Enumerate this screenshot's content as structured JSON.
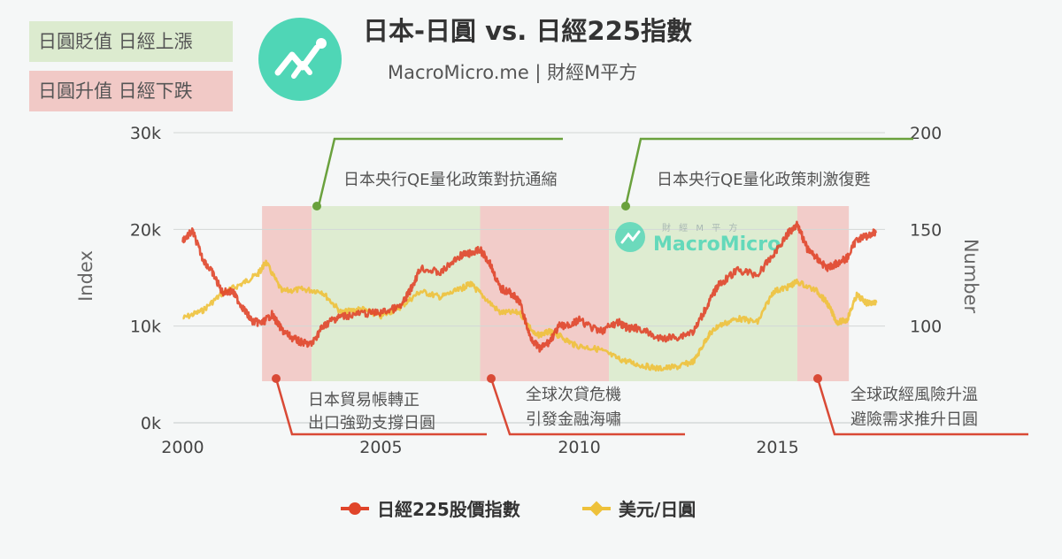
{
  "header": {
    "title": "日本-日圓 vs. 日經225指數",
    "subtitle": "MacroMicro.me | 財經M平方"
  },
  "legend_boxes": {
    "green": "日圓貶值 日經上漲",
    "red": "日圓升值 日經下跌"
  },
  "watermark": {
    "small": "財 經 M 平 方",
    "brand": "MacroMicro"
  },
  "colors": {
    "nikkei": "#e0452a",
    "usdjpy": "#eec13a",
    "green_band": "#dcebcf",
    "red_band": "#f1c9c6",
    "callout_green": "#6aa13d",
    "callout_red": "#d94a36",
    "brand": "#4fd6b6"
  },
  "chart_data": {
    "type": "line",
    "title": "日本-日圓 vs. 日經225指數",
    "xlabel": "",
    "x_ticks": [
      "2000",
      "2005",
      "2010",
      "2015"
    ],
    "xlim": [
      1999.9,
      2017.6
    ],
    "y_left": {
      "label": "Index",
      "ticks": [
        "0k",
        "10k",
        "20k",
        "30k"
      ],
      "lim": [
        0,
        30000
      ]
    },
    "y_right": {
      "label": "Number",
      "ticks": [
        "100",
        "150",
        "200"
      ],
      "lim": [
        50,
        200
      ]
    },
    "grid": true,
    "legend_position": "bottom",
    "series": [
      {
        "name": "日經225股價指數",
        "axis": "left",
        "x": [
          2000.0,
          2000.25,
          2000.5,
          2000.75,
          2001.0,
          2001.25,
          2001.5,
          2001.75,
          2002.0,
          2002.25,
          2002.5,
          2002.75,
          2003.0,
          2003.25,
          2003.5,
          2003.75,
          2004.0,
          2004.5,
          2005.0,
          2005.5,
          2005.75,
          2006.0,
          2006.5,
          2007.0,
          2007.25,
          2007.5,
          2007.75,
          2008.0,
          2008.25,
          2008.5,
          2008.75,
          2009.0,
          2009.25,
          2009.5,
          2009.75,
          2010.0,
          2010.5,
          2011.0,
          2011.25,
          2011.5,
          2012.0,
          2012.5,
          2012.9,
          2013.25,
          2013.5,
          2014.0,
          2014.5,
          2014.9,
          2015.25,
          2015.5,
          2015.75,
          2016.0,
          2016.25,
          2016.5,
          2016.75,
          2017.0,
          2017.25,
          2017.5
        ],
        "values": [
          18900,
          19800,
          17000,
          15500,
          13500,
          13600,
          12000,
          10500,
          10300,
          11200,
          9600,
          8800,
          8300,
          8100,
          9800,
          10600,
          11000,
          11300,
          11400,
          12000,
          13800,
          16000,
          15500,
          17300,
          17500,
          17900,
          16500,
          13900,
          13500,
          12500,
          9000,
          7600,
          8400,
          10000,
          10100,
          10600,
          9400,
          10400,
          9700,
          9800,
          8700,
          8900,
          9500,
          12300,
          14200,
          15800,
          15300,
          17400,
          19500,
          20600,
          18000,
          17000,
          16000,
          16500,
          17000,
          19000,
          19300,
          19800
        ]
      },
      {
        "name": "美元/日圓",
        "axis": "right",
        "x": [
          2000.0,
          2000.5,
          2001.0,
          2001.5,
          2001.9,
          2002.1,
          2002.5,
          2003.0,
          2003.5,
          2004.0,
          2004.5,
          2005.0,
          2005.5,
          2006.0,
          2006.5,
          2007.0,
          2007.25,
          2007.5,
          2008.0,
          2008.5,
          2008.9,
          2009.25,
          2009.5,
          2009.9,
          2010.5,
          2011.0,
          2011.5,
          2012.0,
          2012.5,
          2012.9,
          2013.25,
          2013.5,
          2014.0,
          2014.5,
          2014.9,
          2015.25,
          2015.5,
          2016.0,
          2016.25,
          2016.5,
          2016.75,
          2017.0,
          2017.25,
          2017.5
        ],
        "values": [
          104,
          108,
          117,
          122,
          127,
          133,
          118,
          119,
          118,
          107,
          109,
          105,
          110,
          118,
          115,
          119,
          122,
          117,
          107,
          107,
          95,
          97,
          95,
          90,
          88,
          83,
          80,
          78,
          79,
          82,
          95,
          100,
          104,
          102,
          118,
          120,
          123,
          118,
          112,
          102,
          103,
          116,
          112,
          112
        ]
      }
    ],
    "shaded_periods": [
      {
        "start": 2002.0,
        "end": 2003.25,
        "meaning": "日圓升值 日經下跌"
      },
      {
        "start": 2003.25,
        "end": 2007.5,
        "meaning": "日圓貶值 日經上漲"
      },
      {
        "start": 2007.5,
        "end": 2010.75,
        "meaning": "日圓升值 日經下跌"
      },
      {
        "start": 2010.75,
        "end": 2015.5,
        "meaning": "日圓貶值 日經上漲"
      },
      {
        "start": 2015.5,
        "end": 2016.8,
        "meaning": "日圓升值 日經下跌"
      }
    ],
    "annotations": {
      "qe1": "日本央行QE量化政策對抗通縮",
      "qe2": "日本央行QE量化政策刺激復甦",
      "trade_1": "日本貿易帳轉正",
      "trade_2": "出口強勁支撐日圓",
      "crisis_1": "全球次貸危機",
      "crisis_2": "引發金融海嘯",
      "risk_1": "全球政經風險升溫",
      "risk_2": "避險需求推升日圓"
    }
  }
}
